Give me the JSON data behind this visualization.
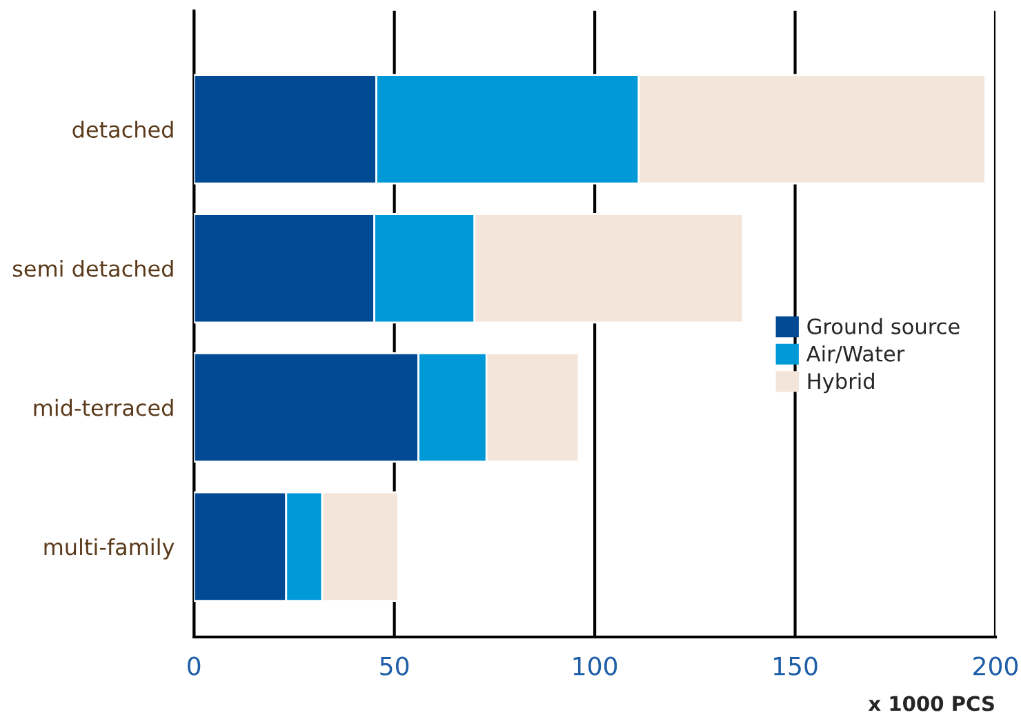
{
  "chart_data": {
    "type": "bar",
    "orientation": "horizontal",
    "stacked": true,
    "categories": [
      "detached",
      "semi detached",
      "mid-terraced",
      "multi-family"
    ],
    "series": [
      {
        "name": "Ground source",
        "color": "#004a93",
        "values": [
          45.5,
          45,
          56,
          23
        ]
      },
      {
        "name": "Air/Water",
        "color": "#0099d8",
        "values": [
          65.5,
          25,
          17,
          9
        ]
      },
      {
        "name": "Hybrid",
        "color": "#f3e5da",
        "values": [
          86.5,
          67,
          23,
          19
        ]
      }
    ],
    "xlabel": "x 1000 PCS",
    "xlim": [
      0,
      200
    ],
    "xticks": [
      0,
      50,
      100,
      150,
      200
    ],
    "grid": "x",
    "legend": "right"
  }
}
